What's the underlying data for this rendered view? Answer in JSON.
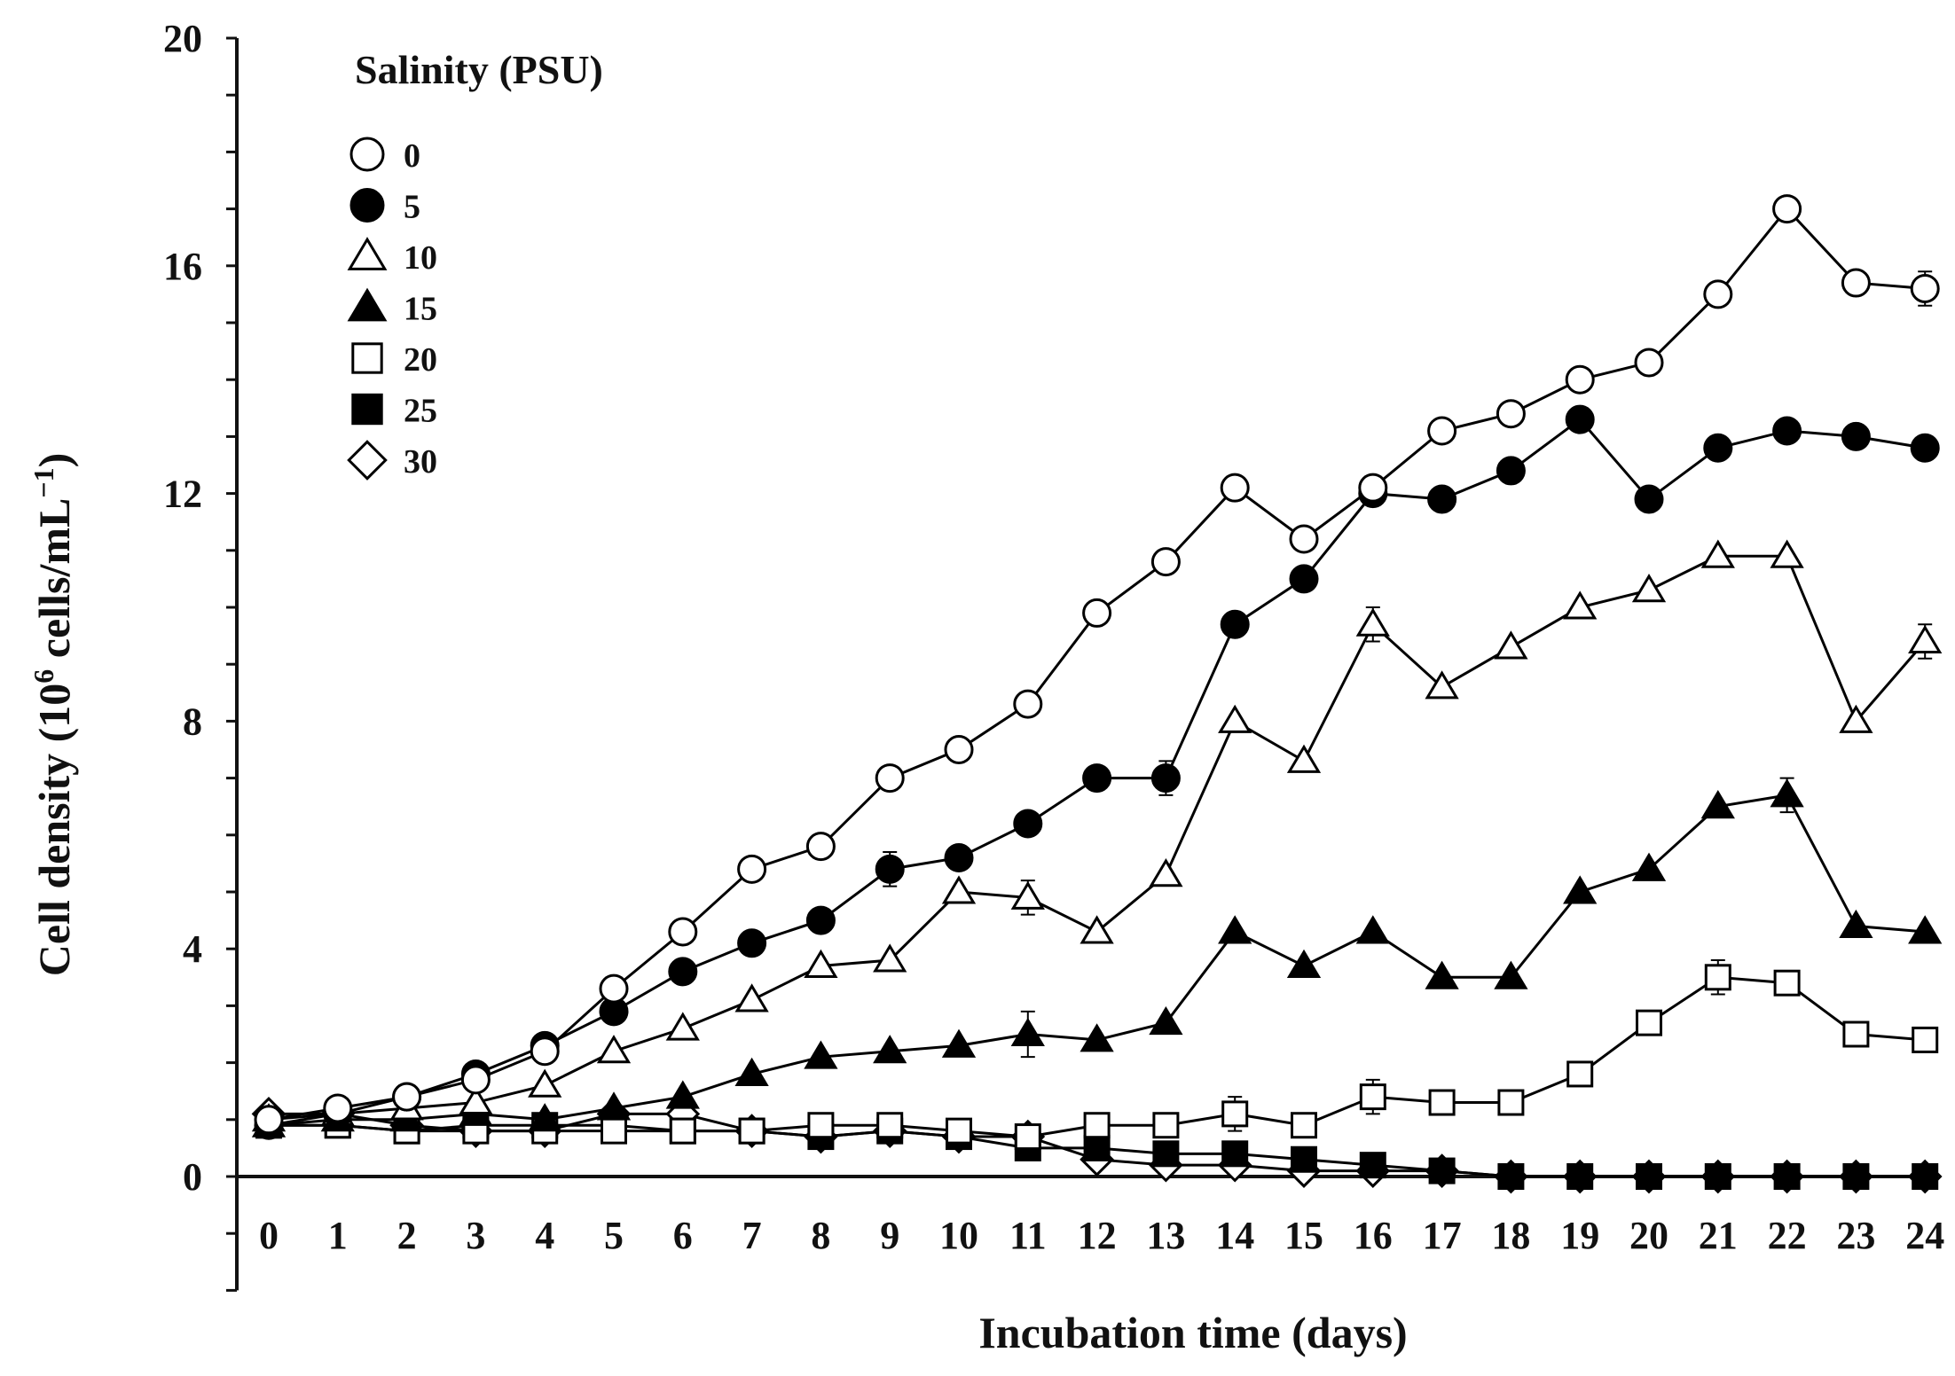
{
  "chart_data": {
    "type": "line",
    "xlabel": "Incubation time (days)",
    "ylabel_main": "Cell  density (10",
    "ylabel_sup": "6",
    "ylabel_mid": " cells/mL",
    "ylabel_sup2": "−1",
    "ylabel_end": ")",
    "legend_title": "Salinity (PSU)",
    "ylim": [
      -2,
      20
    ],
    "yticks": [
      0,
      4,
      8,
      12,
      16,
      20
    ],
    "xticks": [
      0,
      1,
      2,
      3,
      4,
      5,
      6,
      7,
      8,
      9,
      10,
      11,
      12,
      13,
      14,
      15,
      16,
      17,
      18,
      19,
      20,
      21,
      22,
      23,
      24
    ],
    "x": [
      0,
      1,
      2,
      3,
      4,
      5,
      6,
      7,
      8,
      9,
      10,
      11,
      12,
      13,
      14,
      15,
      16,
      17,
      18,
      19,
      20,
      21,
      22,
      23,
      24
    ],
    "series": [
      {
        "name": "0",
        "marker": "circle",
        "fill": "open",
        "values": [
          1.0,
          1.2,
          1.4,
          1.7,
          2.2,
          3.3,
          4.3,
          5.4,
          5.8,
          7.0,
          7.5,
          8.3,
          9.9,
          10.8,
          12.1,
          11.2,
          12.1,
          13.1,
          13.4,
          14.0,
          14.3,
          15.5,
          17.0,
          15.7,
          15.6
        ]
      },
      {
        "name": "5",
        "marker": "circle",
        "fill": "solid",
        "values": [
          0.9,
          1.1,
          1.4,
          1.8,
          2.3,
          2.9,
          3.6,
          4.1,
          4.5,
          5.4,
          5.6,
          6.2,
          7.0,
          7.0,
          9.7,
          10.5,
          12.0,
          11.9,
          12.4,
          13.3,
          11.9,
          12.8,
          13.1,
          13.0,
          12.8
        ]
      },
      {
        "name": "10",
        "marker": "triangle",
        "fill": "open",
        "values": [
          1.0,
          1.1,
          1.2,
          1.3,
          1.6,
          2.2,
          2.6,
          3.1,
          3.7,
          3.8,
          5.0,
          4.9,
          4.3,
          5.3,
          8.0,
          7.3,
          9.7,
          8.6,
          9.3,
          10.0,
          10.3,
          10.9,
          10.9,
          8.0,
          9.4
        ]
      },
      {
        "name": "15",
        "marker": "triangle",
        "fill": "solid",
        "values": [
          0.9,
          1.0,
          1.0,
          1.1,
          1.0,
          1.2,
          1.4,
          1.8,
          2.1,
          2.2,
          2.3,
          2.5,
          2.4,
          2.7,
          4.3,
          3.7,
          4.3,
          3.5,
          3.5,
          5.0,
          5.4,
          6.5,
          6.7,
          4.4,
          4.3
        ]
      },
      {
        "name": "20",
        "marker": "square",
        "fill": "open",
        "values": [
          0.9,
          0.9,
          0.8,
          0.8,
          0.8,
          0.8,
          0.8,
          0.8,
          0.9,
          0.9,
          0.8,
          0.7,
          0.9,
          0.9,
          1.1,
          0.9,
          1.4,
          1.3,
          1.3,
          1.8,
          2.7,
          3.5,
          3.4,
          2.5,
          2.4
        ]
      },
      {
        "name": "25",
        "marker": "square",
        "fill": "solid",
        "values": [
          0.9,
          0.9,
          0.8,
          0.9,
          0.9,
          0.9,
          0.8,
          0.8,
          0.7,
          0.8,
          0.7,
          0.5,
          0.5,
          0.4,
          0.4,
          0.3,
          0.2,
          0.1,
          0.0,
          0.0,
          0.0,
          0.0,
          0.0,
          0.0,
          0.0
        ]
      },
      {
        "name": "30",
        "marker": "diamond",
        "fill": "open",
        "values": [
          1.1,
          1.1,
          0.9,
          0.8,
          0.8,
          1.1,
          1.1,
          0.8,
          0.7,
          0.8,
          0.7,
          0.7,
          0.3,
          0.2,
          0.2,
          0.1,
          0.1,
          0.1,
          0.0,
          0.0,
          0.0,
          0.0,
          0.0,
          0.0,
          0.0
        ]
      }
    ],
    "error_bars": [
      {
        "series": "0",
        "x": 24,
        "err": 0.3
      },
      {
        "series": "5",
        "x": 9,
        "err": 0.3
      },
      {
        "series": "5",
        "x": 13,
        "err": 0.3
      },
      {
        "series": "10",
        "x": 11,
        "err": 0.3
      },
      {
        "series": "10",
        "x": 16,
        "err": 0.3
      },
      {
        "series": "10",
        "x": 24,
        "err": 0.3
      },
      {
        "series": "15",
        "x": 11,
        "err": 0.4
      },
      {
        "series": "15",
        "x": 22,
        "err": 0.3
      },
      {
        "series": "20",
        "x": 14,
        "err": 0.3
      },
      {
        "series": "20",
        "x": 16,
        "err": 0.3
      },
      {
        "series": "20",
        "x": 21,
        "err": 0.3
      }
    ],
    "grid": false,
    "legend_position": "top-left"
  }
}
